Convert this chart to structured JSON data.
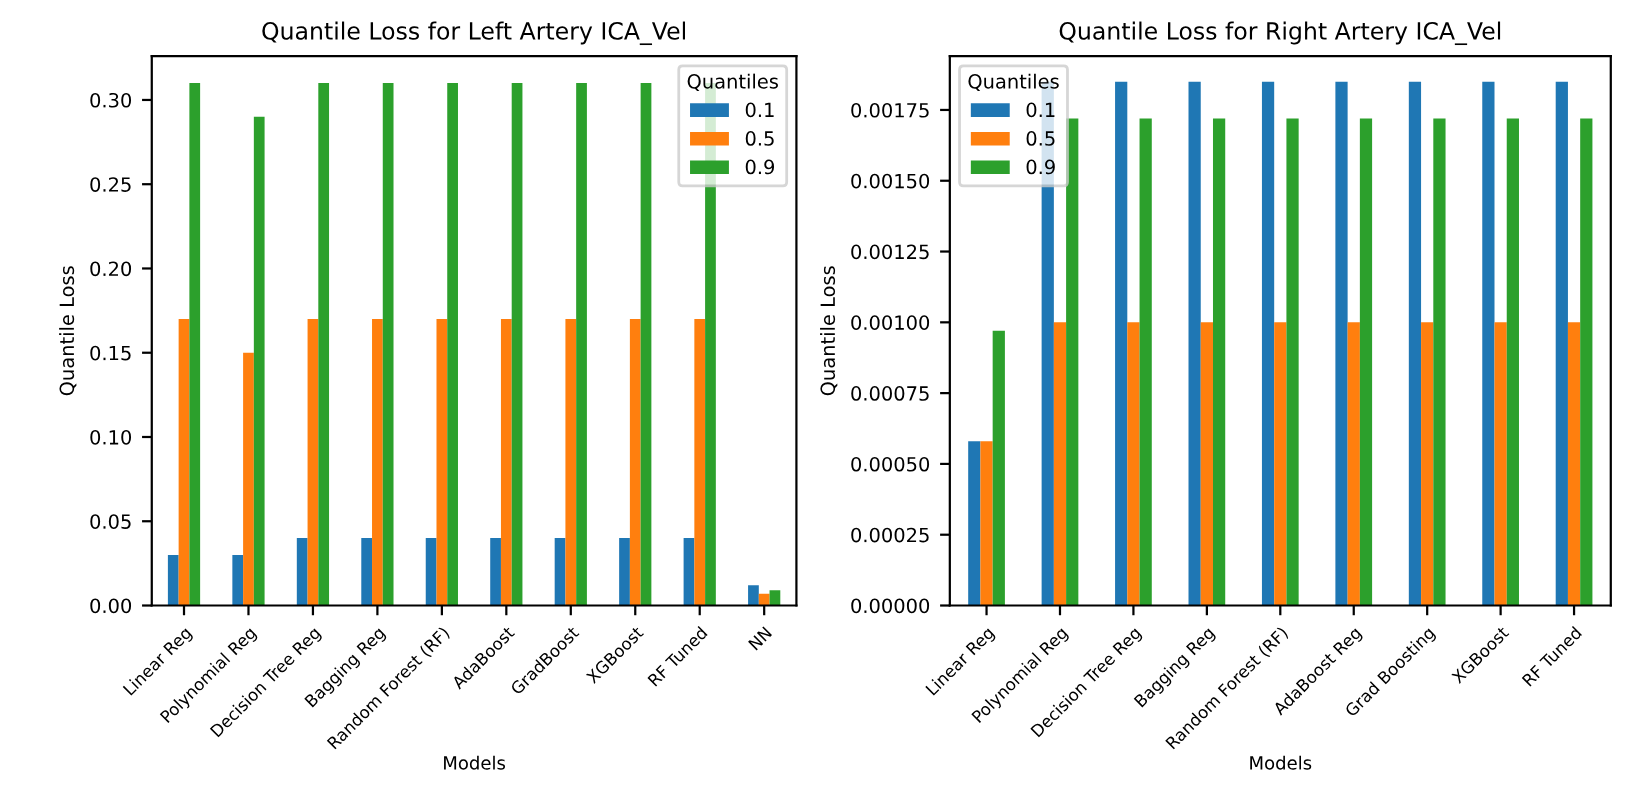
{
  "chart_data": [
    {
      "type": "bar",
      "title": "Quantile Loss for Left Artery ICA_Vel",
      "xlabel": "Models",
      "ylabel": "Quantile Loss",
      "legend_title": "Quantiles",
      "legend": "top right",
      "grid": false,
      "categories": [
        "Linear Reg",
        "Polynomial Reg",
        "Decision Tree Reg",
        "Bagging Reg",
        "Random Forest (RF)",
        "AdaBoost",
        "GradBoost",
        "XGBoost",
        "RF Tuned",
        "NN"
      ],
      "ylim": [
        0,
        0.326
      ],
      "yticks": [
        {
          "value": 0,
          "label": "0.00"
        },
        0.05,
        {
          "value": 0.1,
          "label": "0.10"
        },
        0.15,
        {
          "value": 0.2,
          "label": "0.20"
        },
        0.25,
        {
          "value": 0.3,
          "label": "0.30"
        }
      ],
      "series": [
        {
          "name": "0.1",
          "color": "#1f77b4",
          "values": [
            0.03,
            0.03,
            0.04,
            0.04,
            0.04,
            0.04,
            0.04,
            0.04,
            0.04,
            0.012
          ]
        },
        {
          "name": "0.5",
          "color": "#ff7f0e",
          "values": [
            0.17,
            0.15,
            0.17,
            0.17,
            0.17,
            0.17,
            0.17,
            0.17,
            0.17,
            0.007
          ]
        },
        {
          "name": "0.9",
          "color": "#2ca02c",
          "values": [
            0.31,
            0.29,
            0.31,
            0.31,
            0.31,
            0.31,
            0.31,
            0.31,
            0.31,
            0.009
          ]
        }
      ]
    },
    {
      "type": "bar",
      "title": "Quantile Loss for Right Artery ICA_Vel",
      "xlabel": "Models",
      "ylabel": "Quantile Loss",
      "legend_title": "Quantiles",
      "legend": "top left",
      "grid": false,
      "categories": [
        "Linear Reg",
        "Polynomial Reg",
        "Decision Tree Reg",
        "Bagging Reg",
        "Random Forest (RF)",
        "AdaBoost Reg",
        "Grad Boosting",
        "XGBoost",
        "RF Tuned"
      ],
      "ylim": [
        0,
        0.00194
      ],
      "yticks": [
        {
          "value": 0,
          "label": "0.00000"
        },
        0.00025,
        {
          "value": 0.0005,
          "label": "0.00050"
        },
        0.00075,
        {
          "value": 0.001,
          "label": "0.00100"
        },
        0.00125,
        {
          "value": 0.0015,
          "label": "0.00150"
        },
        0.00175
      ],
      "series": [
        {
          "name": "0.1",
          "color": "#1f77b4",
          "values": [
            0.00058,
            0.00185,
            0.00185,
            0.00185,
            0.00185,
            0.00185,
            0.00185,
            0.00185,
            0.00185
          ]
        },
        {
          "name": "0.5",
          "color": "#ff7f0e",
          "values": [
            0.00058,
            0.001,
            0.001,
            0.001,
            0.001,
            0.001,
            0.001,
            0.001,
            0.001
          ]
        },
        {
          "name": "0.9",
          "color": "#2ca02c",
          "values": [
            0.00097,
            0.00172,
            0.00172,
            0.00172,
            0.00172,
            0.00172,
            0.00172,
            0.00172,
            0.00172
          ]
        }
      ]
    }
  ]
}
